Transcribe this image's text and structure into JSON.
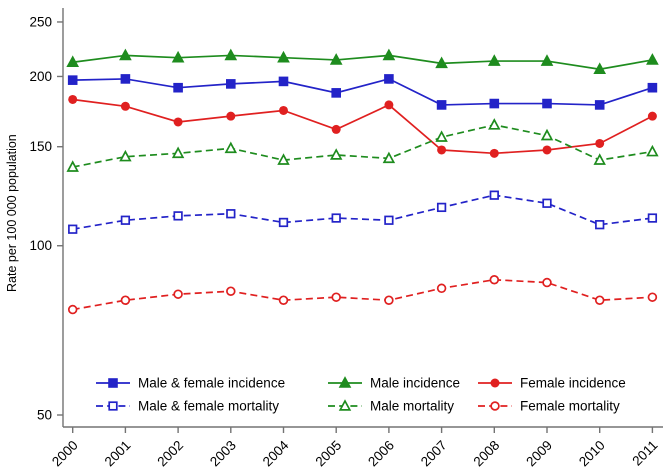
{
  "chart_data": {
    "type": "line",
    "title": "",
    "xlabel": "",
    "ylabel": "Rate per 100 000 population",
    "x_tick_labels": [
      "2000",
      "2001",
      "2002",
      "2003",
      "2004",
      "2005",
      "2006",
      "2007",
      "2008",
      "2009",
      "2010",
      "2011"
    ],
    "x": [
      2000,
      2001,
      2002,
      2003,
      2004,
      2005,
      2006,
      2007,
      2008,
      2009,
      2010,
      2011
    ],
    "y_scale": "log10",
    "y_ticks": [
      250,
      200,
      150,
      100,
      50
    ],
    "ylim": [
      47,
      265
    ],
    "grid": "off",
    "legend_position": "bottom",
    "axis_color": "#737373",
    "series": [
      {
        "name": "Male & female incidence",
        "color": "#2323c8",
        "marker": "square",
        "marker_fill": "solid",
        "line_style": "solid",
        "values": [
          197,
          198,
          191,
          194,
          196,
          187,
          198,
          178,
          179,
          179,
          178,
          191
        ]
      },
      {
        "name": "Male incidence",
        "color": "#1e8c1e",
        "marker": "triangle",
        "marker_fill": "solid",
        "line_style": "solid",
        "values": [
          212,
          218,
          216,
          218,
          216,
          214,
          218,
          211,
          213,
          213,
          206,
          214
        ]
      },
      {
        "name": "Female incidence",
        "color": "#e02020",
        "marker": "circle",
        "marker_fill": "solid",
        "line_style": "solid",
        "values": [
          182,
          177,
          166,
          170,
          174,
          161,
          178,
          148,
          146,
          148,
          152,
          170
        ]
      },
      {
        "name": "Male & female mortality",
        "color": "#2323c8",
        "marker": "square",
        "marker_fill": "open",
        "line_style": "dashed",
        "values": [
          107,
          111,
          113,
          114,
          110,
          112,
          111,
          117,
          123,
          119,
          109,
          112
        ]
      },
      {
        "name": "Male mortality",
        "color": "#1e8c1e",
        "marker": "triangle",
        "marker_fill": "open",
        "line_style": "dashed",
        "values": [
          138,
          144,
          146,
          149,
          142,
          145,
          143,
          156,
          164,
          157,
          142,
          147
        ]
      },
      {
        "name": "Female mortality",
        "color": "#e02020",
        "marker": "circle",
        "marker_fill": "open",
        "line_style": "dashed",
        "values": [
          77,
          80,
          82,
          83,
          80,
          81,
          80,
          84,
          87,
          86,
          80,
          81
        ]
      }
    ]
  }
}
